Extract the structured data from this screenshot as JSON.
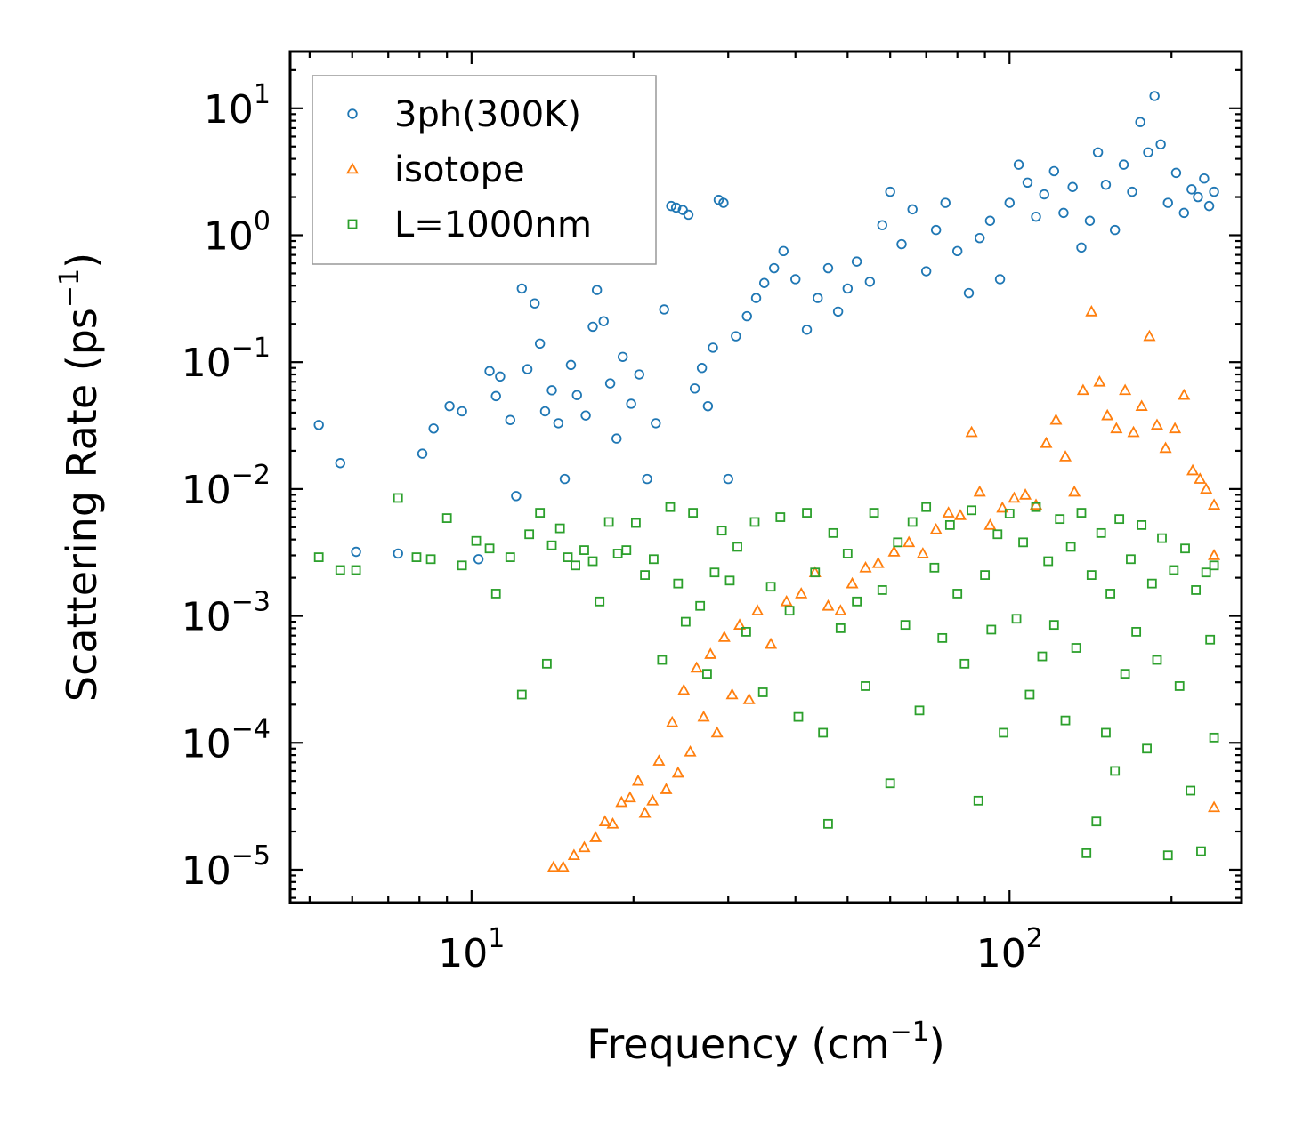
{
  "chart_data": {
    "type": "scatter",
    "title": "",
    "xlabel": {
      "text": "Frequency (cm",
      "sup": "−1",
      "close": ")"
    },
    "ylabel": {
      "text": "Scattering Rate (ps",
      "sup": "−1",
      "close": ")"
    },
    "xscale": "log",
    "yscale": "log",
    "xlim": [
      4.6,
      270
    ],
    "ylim": [
      5.5e-06,
      28
    ],
    "x_ticks": [
      {
        "value": 10,
        "base": "10",
        "exp": "1"
      },
      {
        "value": 100,
        "base": "10",
        "exp": "2"
      }
    ],
    "y_ticks": [
      {
        "value": 1e-05,
        "base": "10",
        "exp": "−5"
      },
      {
        "value": 0.0001,
        "base": "10",
        "exp": "−4"
      },
      {
        "value": 0.001,
        "base": "10",
        "exp": "−3"
      },
      {
        "value": 0.01,
        "base": "10",
        "exp": "−2"
      },
      {
        "value": 0.1,
        "base": "10",
        "exp": "−1"
      },
      {
        "value": 1,
        "base": "10",
        "exp": "0"
      },
      {
        "value": 10,
        "base": "10",
        "exp": "1"
      }
    ],
    "legend_position": "upper-left",
    "grid": false,
    "series": [
      {
        "name": "3ph(300K)",
        "marker": "circle",
        "color": "#1f77b4",
        "points": [
          [
            5.2,
            0.032
          ],
          [
            5.7,
            0.016
          ],
          [
            6.1,
            0.0032
          ],
          [
            7.3,
            0.0031
          ],
          [
            8.1,
            0.019
          ],
          [
            8.5,
            0.03
          ],
          [
            9.1,
            0.045
          ],
          [
            9.6,
            0.041
          ],
          [
            10.3,
            0.0028
          ],
          [
            10.8,
            0.085
          ],
          [
            11.1,
            0.054
          ],
          [
            11.3,
            0.077
          ],
          [
            11.8,
            0.035
          ],
          [
            12.1,
            0.0088
          ],
          [
            12.4,
            0.38
          ],
          [
            12.7,
            0.088
          ],
          [
            13.1,
            0.29
          ],
          [
            13.4,
            0.14
          ],
          [
            13.7,
            0.041
          ],
          [
            14.1,
            0.06
          ],
          [
            14.5,
            0.033
          ],
          [
            14.9,
            0.012
          ],
          [
            15.3,
            0.095
          ],
          [
            15.7,
            0.055
          ],
          [
            16.3,
            0.038
          ],
          [
            16.8,
            0.19
          ],
          [
            17.1,
            0.37
          ],
          [
            17.6,
            0.21
          ],
          [
            18.1,
            0.068
          ],
          [
            18.6,
            0.025
          ],
          [
            19.1,
            0.11
          ],
          [
            19.8,
            0.047
          ],
          [
            20.5,
            0.08
          ],
          [
            21.2,
            0.012
          ],
          [
            22.0,
            0.033
          ],
          [
            22.8,
            0.26
          ],
          [
            23.5,
            1.7
          ],
          [
            24.0,
            1.65
          ],
          [
            24.7,
            1.58
          ],
          [
            25.3,
            1.45
          ],
          [
            26.0,
            0.062
          ],
          [
            26.8,
            0.09
          ],
          [
            27.5,
            0.045
          ],
          [
            28.1,
            0.13
          ],
          [
            28.8,
            1.9
          ],
          [
            29.4,
            1.8
          ],
          [
            30.0,
            0.012
          ],
          [
            31.0,
            0.16
          ],
          [
            32.5,
            0.23
          ],
          [
            33.8,
            0.32
          ],
          [
            35.0,
            0.42
          ],
          [
            36.5,
            0.55
          ],
          [
            38.0,
            0.75
          ],
          [
            40.0,
            0.45
          ],
          [
            42.0,
            0.18
          ],
          [
            44.0,
            0.32
          ],
          [
            46.0,
            0.55
          ],
          [
            48.0,
            0.25
          ],
          [
            50.0,
            0.38
          ],
          [
            52.0,
            0.62
          ],
          [
            55.0,
            0.43
          ],
          [
            58.0,
            1.2
          ],
          [
            60.0,
            2.2
          ],
          [
            63.0,
            0.85
          ],
          [
            66.0,
            1.6
          ],
          [
            70.0,
            0.52
          ],
          [
            73.0,
            1.1
          ],
          [
            76.0,
            1.8
          ],
          [
            80.0,
            0.75
          ],
          [
            84.0,
            0.35
          ],
          [
            88.0,
            0.95
          ],
          [
            92.0,
            1.3
          ],
          [
            96.0,
            0.45
          ],
          [
            100.0,
            1.8
          ],
          [
            104.0,
            3.6
          ],
          [
            108.0,
            2.6
          ],
          [
            112.0,
            1.4
          ],
          [
            116.0,
            2.1
          ],
          [
            121.0,
            3.2
          ],
          [
            126.0,
            1.5
          ],
          [
            131.0,
            2.4
          ],
          [
            136.0,
            0.8
          ],
          [
            141.0,
            1.3
          ],
          [
            146.0,
            4.5
          ],
          [
            151.0,
            2.5
          ],
          [
            157.0,
            1.1
          ],
          [
            163.0,
            3.6
          ],
          [
            169.0,
            2.2
          ],
          [
            175.0,
            7.8
          ],
          [
            181.0,
            4.5
          ],
          [
            186.0,
            12.5
          ],
          [
            191.0,
            5.2
          ],
          [
            197.0,
            1.8
          ],
          [
            204.0,
            3.1
          ],
          [
            211.0,
            1.5
          ],
          [
            218.0,
            2.3
          ],
          [
            224.0,
            2.0
          ],
          [
            230.0,
            2.8
          ],
          [
            235.0,
            1.7
          ],
          [
            240.0,
            2.2
          ]
        ]
      },
      {
        "name": "isotope",
        "marker": "triangle",
        "color": "#ff7f0e",
        "points": [
          [
            14.2,
            1.05e-05
          ],
          [
            14.8,
            1.05e-05
          ],
          [
            15.5,
            1.3e-05
          ],
          [
            16.2,
            1.5e-05
          ],
          [
            17.0,
            1.8e-05
          ],
          [
            17.7,
            2.4e-05
          ],
          [
            18.3,
            2.3e-05
          ],
          [
            19.0,
            3.4e-05
          ],
          [
            19.7,
            3.7e-05
          ],
          [
            20.4,
            5e-05
          ],
          [
            21.0,
            2.8e-05
          ],
          [
            21.7,
            3.5e-05
          ],
          [
            22.3,
            7.2e-05
          ],
          [
            23.0,
            4.3e-05
          ],
          [
            23.6,
            0.000145
          ],
          [
            24.2,
            5.8e-05
          ],
          [
            24.8,
            0.00026
          ],
          [
            25.5,
            8.5e-05
          ],
          [
            26.2,
            0.00039
          ],
          [
            27.0,
            0.00016
          ],
          [
            27.8,
            0.0005
          ],
          [
            28.6,
            0.00012
          ],
          [
            29.5,
            0.00068
          ],
          [
            30.5,
            0.00024
          ],
          [
            31.5,
            0.00085
          ],
          [
            32.8,
            0.00022
          ],
          [
            34.0,
            0.0011
          ],
          [
            36.0,
            0.0006
          ],
          [
            38.5,
            0.0013
          ],
          [
            41.0,
            0.0015
          ],
          [
            43.5,
            0.0022
          ],
          [
            46.0,
            0.0012
          ],
          [
            48.5,
            0.0011
          ],
          [
            51.0,
            0.0018
          ],
          [
            54.0,
            0.0024
          ],
          [
            57.0,
            0.0026
          ],
          [
            61.0,
            0.0032
          ],
          [
            65.0,
            0.0038
          ],
          [
            69.0,
            0.0031
          ],
          [
            73.0,
            0.0048
          ],
          [
            77.0,
            0.0065
          ],
          [
            81.0,
            0.0062
          ],
          [
            85.0,
            0.028
          ],
          [
            88.0,
            0.0095
          ],
          [
            92.0,
            0.0052
          ],
          [
            97.0,
            0.0071
          ],
          [
            102.0,
            0.0085
          ],
          [
            107.0,
            0.009
          ],
          [
            112.0,
            0.0075
          ],
          [
            117.0,
            0.023
          ],
          [
            122.0,
            0.035
          ],
          [
            127.0,
            0.018
          ],
          [
            132.0,
            0.0095
          ],
          [
            137.0,
            0.06
          ],
          [
            142.0,
            0.25
          ],
          [
            147.0,
            0.07
          ],
          [
            152.0,
            0.038
          ],
          [
            158.0,
            0.03
          ],
          [
            164.0,
            0.06
          ],
          [
            170.0,
            0.028
          ],
          [
            176.0,
            0.045
          ],
          [
            182.0,
            0.16
          ],
          [
            188.0,
            0.032
          ],
          [
            195.0,
            0.021
          ],
          [
            203.0,
            0.03
          ],
          [
            211.0,
            0.055
          ],
          [
            219.0,
            0.014
          ],
          [
            226.0,
            0.012
          ],
          [
            232.0,
            0.01
          ],
          [
            240.0,
            0.0075
          ],
          [
            240.0,
            0.003
          ],
          [
            240.0,
            3.1e-05
          ]
        ]
      },
      {
        "name": "L=1000nm",
        "marker": "square",
        "color": "#2ca02c",
        "points": [
          [
            5.2,
            0.0029
          ],
          [
            5.7,
            0.0023
          ],
          [
            6.1,
            0.0023
          ],
          [
            7.3,
            0.0085
          ],
          [
            7.9,
            0.0029
          ],
          [
            8.4,
            0.0028
          ],
          [
            9.0,
            0.0059
          ],
          [
            9.6,
            0.0025
          ],
          [
            10.2,
            0.0039
          ],
          [
            10.8,
            0.0034
          ],
          [
            11.1,
            0.0015
          ],
          [
            11.8,
            0.0029
          ],
          [
            12.4,
            0.00024
          ],
          [
            12.8,
            0.0044
          ],
          [
            13.4,
            0.0065
          ],
          [
            13.8,
            0.00042
          ],
          [
            14.1,
            0.0036
          ],
          [
            14.6,
            0.0049
          ],
          [
            15.1,
            0.0029
          ],
          [
            15.6,
            0.0025
          ],
          [
            16.2,
            0.0033
          ],
          [
            16.8,
            0.0027
          ],
          [
            17.3,
            0.0013
          ],
          [
            18.0,
            0.0055
          ],
          [
            18.7,
            0.0031
          ],
          [
            19.4,
            0.0033
          ],
          [
            20.2,
            0.0054
          ],
          [
            21.0,
            0.0021
          ],
          [
            21.8,
            0.0028
          ],
          [
            22.6,
            0.00045
          ],
          [
            23.4,
            0.0072
          ],
          [
            24.2,
            0.0018
          ],
          [
            25.0,
            0.0009
          ],
          [
            25.8,
            0.0065
          ],
          [
            26.6,
            0.0012
          ],
          [
            27.4,
            0.00035
          ],
          [
            28.3,
            0.0022
          ],
          [
            29.2,
            0.0047
          ],
          [
            30.2,
            0.0019
          ],
          [
            31.2,
            0.0035
          ],
          [
            32.4,
            0.00075
          ],
          [
            33.6,
            0.0055
          ],
          [
            34.8,
            0.00025
          ],
          [
            36.0,
            0.0017
          ],
          [
            37.5,
            0.006
          ],
          [
            39.0,
            0.0011
          ],
          [
            40.5,
            0.00016
          ],
          [
            42.0,
            0.0065
          ],
          [
            43.5,
            0.0022
          ],
          [
            45.0,
            0.00012
          ],
          [
            46.0,
            2.3e-05
          ],
          [
            47.0,
            0.0045
          ],
          [
            48.5,
            0.0008
          ],
          [
            50.0,
            0.0031
          ],
          [
            52.0,
            0.0013
          ],
          [
            54.0,
            0.00028
          ],
          [
            56.0,
            0.0065
          ],
          [
            58.0,
            0.0016
          ],
          [
            60.0,
            4.8e-05
          ],
          [
            62.0,
            0.0038
          ],
          [
            64.0,
            0.00085
          ],
          [
            66.0,
            0.0055
          ],
          [
            68.0,
            0.00018
          ],
          [
            70.0,
            0.0072
          ],
          [
            72.5,
            0.0024
          ],
          [
            75.0,
            0.00067
          ],
          [
            77.5,
            0.0052
          ],
          [
            80.0,
            0.0015
          ],
          [
            82.5,
            0.00042
          ],
          [
            85.0,
            0.0068
          ],
          [
            87.5,
            3.5e-05
          ],
          [
            90.0,
            0.0021
          ],
          [
            92.5,
            0.00078
          ],
          [
            95.0,
            0.0044
          ],
          [
            97.5,
            0.00012
          ],
          [
            100.0,
            0.0064
          ],
          [
            103.0,
            0.00095
          ],
          [
            106.0,
            0.0038
          ],
          [
            109.0,
            0.00024
          ],
          [
            112.0,
            0.0072
          ],
          [
            115.0,
            0.00048
          ],
          [
            118.0,
            0.0027
          ],
          [
            121.0,
            0.00085
          ],
          [
            124.0,
            0.0058
          ],
          [
            127.0,
            0.00015
          ],
          [
            130.0,
            0.0035
          ],
          [
            133.0,
            0.00056
          ],
          [
            136.0,
            0.0065
          ],
          [
            139.0,
            1.35e-05
          ],
          [
            142.0,
            0.0021
          ],
          [
            145.0,
            2.4e-05
          ],
          [
            148.0,
            0.0045
          ],
          [
            151.0,
            0.00012
          ],
          [
            154.0,
            0.0015
          ],
          [
            157.0,
            6e-05
          ],
          [
            160.0,
            0.0058
          ],
          [
            164.0,
            0.00035
          ],
          [
            168.0,
            0.0028
          ],
          [
            172.0,
            0.00075
          ],
          [
            176.0,
            0.0052
          ],
          [
            180.0,
            9e-05
          ],
          [
            184.0,
            0.0018
          ],
          [
            188.0,
            0.00045
          ],
          [
            192.0,
            0.0041
          ],
          [
            197.0,
            1.3e-05
          ],
          [
            202.0,
            0.0023
          ],
          [
            207.0,
            0.00028
          ],
          [
            212.0,
            0.0034
          ],
          [
            217.0,
            4.2e-05
          ],
          [
            222.0,
            0.0016
          ],
          [
            227.0,
            1.4e-05
          ],
          [
            232.0,
            0.0022
          ],
          [
            236.0,
            0.00065
          ],
          [
            240.0,
            0.00011
          ],
          [
            240.0,
            0.0025
          ]
        ]
      }
    ]
  }
}
